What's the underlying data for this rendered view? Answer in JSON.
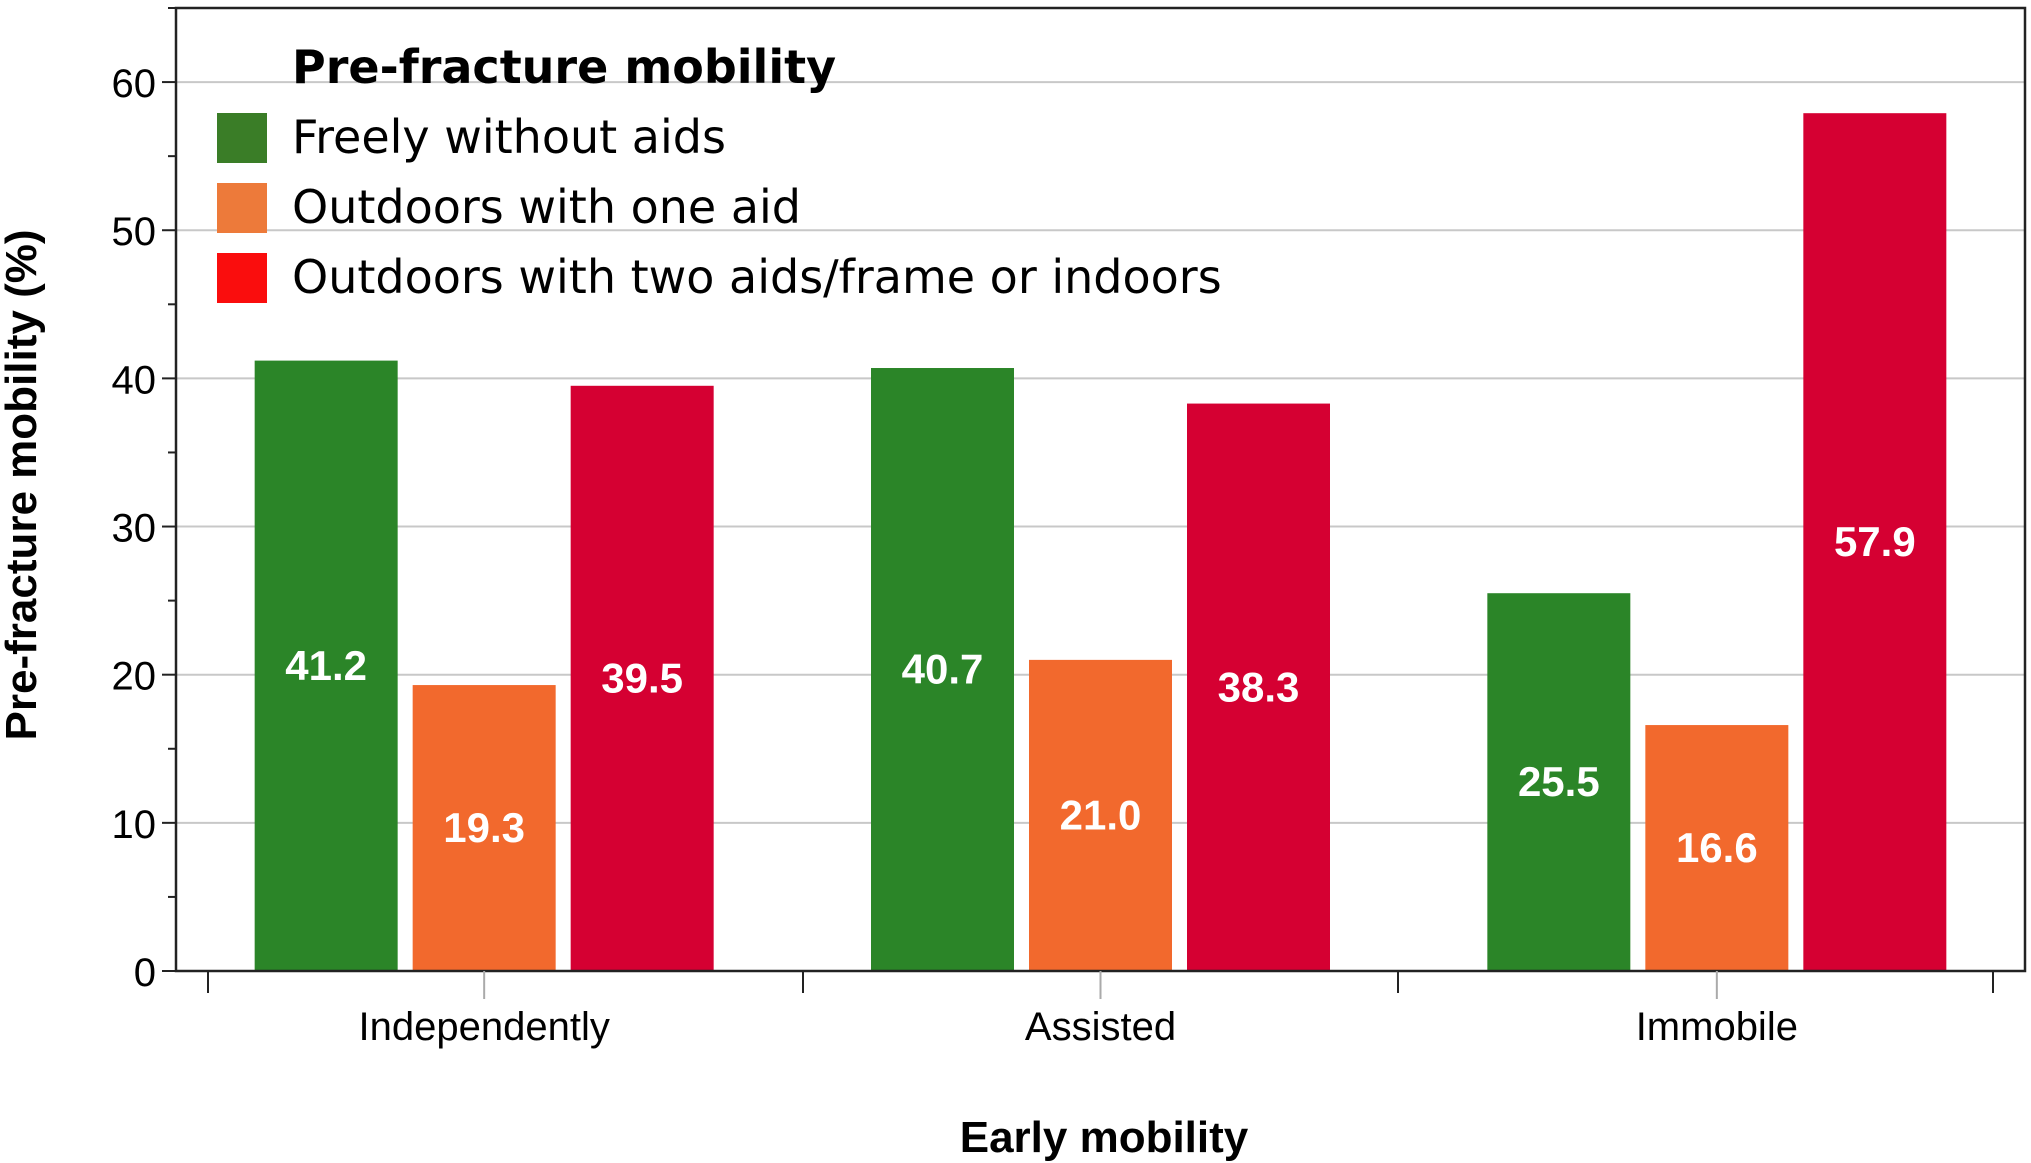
{
  "chart_data": {
    "type": "bar",
    "xlabel": "Early mobility",
    "ylabel": "Pre-fracture mobility (%)",
    "categories": [
      "Independently",
      "Assisted",
      "Immobile"
    ],
    "ylim": [
      0,
      65
    ],
    "yticks": [
      0,
      10,
      20,
      30,
      40,
      50,
      60
    ],
    "grid": true,
    "legend": {
      "title": "Pre-fracture mobility",
      "placement": "top-left"
    },
    "series": [
      {
        "name": "Freely without aids",
        "color": "#2b8528",
        "legend_color": "#3a7d27",
        "values": [
          41.2,
          40.7,
          25.5
        ],
        "labels": [
          "41.2",
          "40.7",
          "25.5"
        ]
      },
      {
        "name": "Outdoors with one aid",
        "color": "#f2692d",
        "legend_color": "#ed7a3a",
        "values": [
          19.3,
          21.0,
          16.6
        ],
        "labels": [
          "19.3",
          "21.0",
          "16.6"
        ]
      },
      {
        "name": "Outdoors with two aids/frame or indoors",
        "color": "#d50032",
        "legend_color": "#fa0d0d",
        "values": [
          39.5,
          38.3,
          57.9
        ],
        "labels": [
          "39.5",
          "38.3",
          "57.9"
        ]
      }
    ]
  }
}
